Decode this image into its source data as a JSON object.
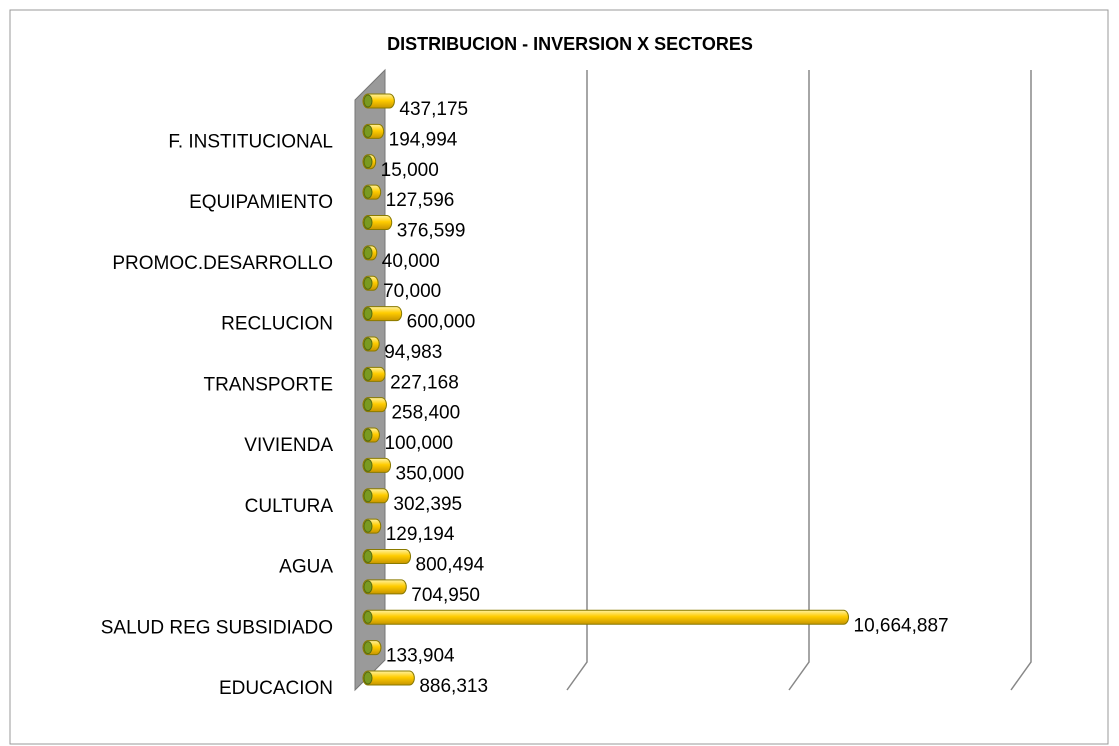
{
  "chart_data": {
    "type": "bar",
    "orientation": "horizontal",
    "title": "DISTRIBUCION  - INVERSION X SECTORES",
    "categories": [
      "EDUCACION",
      null,
      "SALUD REG SUBSIDIADO",
      null,
      "AGUA",
      null,
      "CULTURA",
      null,
      "VIVIENDA",
      null,
      "TRANSPORTE",
      null,
      "RECLUCION",
      null,
      "PROMOC.DESARROLLO",
      null,
      "EQUIPAMIENTO",
      null,
      "F. INSTITUCIONAL",
      null
    ],
    "values": [
      886313,
      133904,
      10664887,
      704950,
      800494,
      129194,
      302395,
      350000,
      100000,
      258400,
      227168,
      94983,
      600000,
      70000,
      40000,
      376599,
      127596,
      15000,
      194994,
      437175
    ],
    "value_labels": [
      "886,313",
      "133,904",
      "10,664,887",
      "704,950",
      "800,494",
      "129,194",
      "302,395",
      "350,000",
      "100,000",
      "258,400",
      "227,168",
      "94,983",
      "600,000",
      "70,000",
      "40,000",
      "376,599",
      "127,596",
      "15,000",
      "194,994",
      "437,175"
    ],
    "color": "#ffcc00",
    "xlim": [
      0,
      15000000
    ],
    "xticks": [
      0,
      5000000,
      10000000,
      15000000
    ],
    "grid": true
  }
}
